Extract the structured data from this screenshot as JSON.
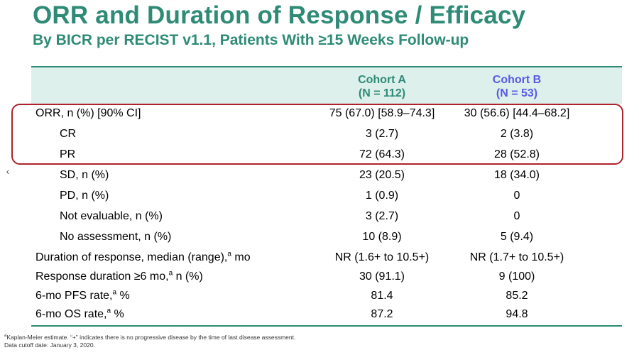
{
  "title": "ORR and Duration of Response / Efficacy",
  "subtitle": "By BICR per RECIST v1.1, Patients With ≥15 Weeks Follow-up",
  "columns": {
    "a_name": "Cohort A",
    "a_n": "(N = 112)",
    "b_name": "Cohort B",
    "b_n": "(N = 53)"
  },
  "rows": [
    {
      "label": "ORR, n (%) [90% CI]",
      "sup": "",
      "suffix": "",
      "a": "75 (67.0) [58.9–74.3]",
      "b": "30 (56.6) [44.4–68.2]"
    },
    {
      "label": "CR",
      "sup": "",
      "suffix": "",
      "a": "3 (2.7)",
      "b": "2 (3.8)"
    },
    {
      "label": "PR",
      "sup": "",
      "suffix": "",
      "a": "72 (64.3)",
      "b": "28 (52.8)"
    },
    {
      "label": "SD, n (%)",
      "sup": "",
      "suffix": "",
      "a": "23 (20.5)",
      "b": "18 (34.0)"
    },
    {
      "label": "PD, n (%)",
      "sup": "",
      "suffix": "",
      "a": "1 (0.9)",
      "b": "0"
    },
    {
      "label": "Not evaluable, n (%)",
      "sup": "",
      "suffix": "",
      "a": "3 (2.7)",
      "b": "0"
    },
    {
      "label": "No assessment, n (%)",
      "sup": "",
      "suffix": "",
      "a": "10 (8.9)",
      "b": "5 (9.4)"
    },
    {
      "label": "Duration of response, median (range),",
      "sup": "a",
      "suffix": " mo",
      "a": "NR (1.6+ to 10.5+)",
      "b": "NR (1.7+ to 10.5+)"
    },
    {
      "label": "Response duration ≥6 mo,",
      "sup": "a",
      "suffix": " n (%)",
      "a": "30 (91.1)",
      "b": "9 (100)"
    },
    {
      "label": "6-mo PFS rate,",
      "sup": "a",
      "suffix": " %",
      "a": "81.4",
      "b": "85.2"
    },
    {
      "label": "6-mo OS rate,",
      "sup": "a",
      "suffix": " %",
      "a": "87.2",
      "b": "94.8"
    }
  ],
  "footnote": {
    "mark": "a",
    "line1": "Kaplan-Meier  estimate.  “+” indicates there is no progressive disease by the time of last disease assessment.",
    "line2": "Data cutoff date: January 3, 2020."
  },
  "nav": {
    "prev_glyph": "‹"
  },
  "colors": {
    "accent": "#2e8b76",
    "cohort_b": "#5a5ae6",
    "highlight": "#b0222a",
    "header_bg": "#ddf0ec"
  }
}
